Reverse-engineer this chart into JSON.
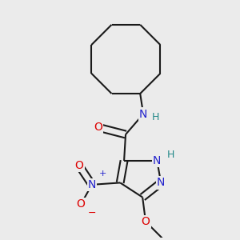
{
  "background_color": "#ebebeb",
  "bond_color": "#1a1a1a",
  "bond_width": 1.5,
  "atom_colors": {
    "N": "#2222cc",
    "O": "#dd0000",
    "H_teal": "#228888",
    "C": "#1a1a1a"
  },
  "font_size_atoms": 10,
  "fig_size": [
    3.0,
    3.0
  ],
  "dpi": 100,
  "xlim": [
    -2.5,
    2.5
  ],
  "ylim": [
    -3.2,
    2.8
  ]
}
